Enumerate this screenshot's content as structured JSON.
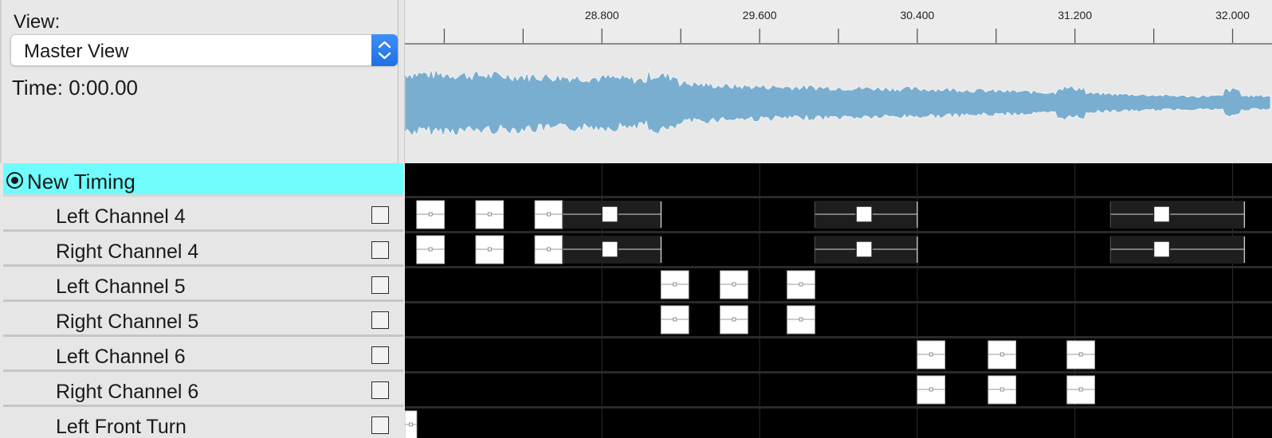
{
  "header": {
    "view_label": "View:",
    "view_select": {
      "value": "Master View",
      "stepper_icon": "up-down-chevron-icon"
    },
    "time_label": "Time: 0:00.00"
  },
  "ruler": {
    "start": 27.8,
    "end": 32.2,
    "ticks": [
      "28.800",
      "29.600",
      "30.400",
      "31.200",
      "32.000"
    ]
  },
  "colors": {
    "waveform": "#7aaed0",
    "selected_row": "#70fcfc",
    "track_bg": "#000000",
    "effect_bar": "#1e1e1e"
  },
  "tracks": [
    {
      "name": "New Timing",
      "type": "timing",
      "selected": true,
      "icon": "radio-selected-icon"
    },
    {
      "name": "Left Channel 4",
      "effects": [
        {
          "kind": "box",
          "start": 27.86,
          "end": 28.0
        },
        {
          "kind": "box",
          "start": 28.16,
          "end": 28.3
        },
        {
          "kind": "box",
          "start": 28.46,
          "end": 28.6
        },
        {
          "kind": "bar",
          "start": 28.6,
          "end": 29.1,
          "marker": 28.84
        },
        {
          "kind": "bar",
          "start": 29.88,
          "end": 30.4,
          "marker": 30.13
        },
        {
          "kind": "bar",
          "start": 31.38,
          "end": 32.06,
          "marker": 31.64
        }
      ]
    },
    {
      "name": "Right Channel 4",
      "effects": [
        {
          "kind": "box",
          "start": 27.86,
          "end": 28.0
        },
        {
          "kind": "box",
          "start": 28.16,
          "end": 28.3
        },
        {
          "kind": "box",
          "start": 28.46,
          "end": 28.6
        },
        {
          "kind": "bar",
          "start": 28.6,
          "end": 29.1,
          "marker": 28.84
        },
        {
          "kind": "bar",
          "start": 29.88,
          "end": 30.4,
          "marker": 30.13
        },
        {
          "kind": "bar",
          "start": 31.38,
          "end": 32.06,
          "marker": 31.64
        }
      ]
    },
    {
      "name": "Left Channel 5",
      "effects": [
        {
          "kind": "box",
          "start": 29.1,
          "end": 29.24
        },
        {
          "kind": "box",
          "start": 29.4,
          "end": 29.54
        },
        {
          "kind": "box",
          "start": 29.74,
          "end": 29.88
        }
      ]
    },
    {
      "name": "Right Channel 5",
      "effects": [
        {
          "kind": "box",
          "start": 29.1,
          "end": 29.24
        },
        {
          "kind": "box",
          "start": 29.4,
          "end": 29.54
        },
        {
          "kind": "box",
          "start": 29.74,
          "end": 29.88
        }
      ]
    },
    {
      "name": "Left Channel 6",
      "effects": [
        {
          "kind": "box",
          "start": 30.4,
          "end": 30.54
        },
        {
          "kind": "box",
          "start": 30.76,
          "end": 30.9
        },
        {
          "kind": "box",
          "start": 31.16,
          "end": 31.3
        }
      ]
    },
    {
      "name": "Right Channel 6",
      "effects": [
        {
          "kind": "box",
          "start": 30.4,
          "end": 30.54
        },
        {
          "kind": "box",
          "start": 30.76,
          "end": 30.9
        },
        {
          "kind": "box",
          "start": 31.16,
          "end": 31.3
        }
      ]
    },
    {
      "name": "Left Front Turn",
      "effects": [
        {
          "kind": "box",
          "start": 27.8,
          "end": 27.86
        }
      ]
    }
  ]
}
